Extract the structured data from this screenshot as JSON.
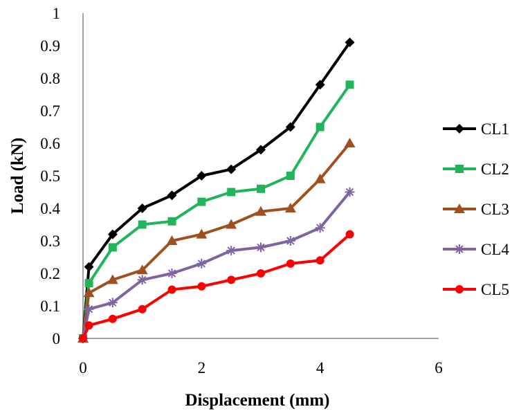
{
  "chart_data": {
    "type": "line",
    "title": "",
    "xlabel": "Displacement (mm)",
    "ylabel": "Load (kN)",
    "xlim": [
      0,
      6
    ],
    "ylim": [
      0,
      1
    ],
    "xticks": [
      0,
      2,
      4,
      6
    ],
    "yticks": [
      0,
      0.1,
      0.2,
      0.3,
      0.4,
      0.5,
      0.6,
      0.7,
      0.8,
      0.9,
      1
    ],
    "x": [
      0,
      0.1,
      0.5,
      1,
      1.5,
      2,
      2.5,
      3,
      3.5,
      4,
      4.5
    ],
    "grid": false,
    "legend_position": "right",
    "series": [
      {
        "name": "CL1",
        "color": "#000000",
        "marker": "diamond",
        "values": [
          0,
          0.22,
          0.32,
          0.4,
          0.44,
          0.5,
          0.52,
          0.58,
          0.65,
          0.78,
          0.91
        ]
      },
      {
        "name": "CL2",
        "color": "#22b45a",
        "marker": "square",
        "values": [
          0,
          0.17,
          0.28,
          0.35,
          0.36,
          0.42,
          0.45,
          0.46,
          0.5,
          0.65,
          0.78
        ]
      },
      {
        "name": "CL3",
        "color": "#a0501e",
        "marker": "triangle",
        "values": [
          0,
          0.14,
          0.18,
          0.21,
          0.3,
          0.32,
          0.35,
          0.39,
          0.4,
          0.49,
          0.6
        ]
      },
      {
        "name": "CL4",
        "color": "#8064a2",
        "marker": "asterisk",
        "values": [
          0,
          0.09,
          0.11,
          0.18,
          0.2,
          0.23,
          0.27,
          0.28,
          0.3,
          0.34,
          0.45
        ]
      },
      {
        "name": "CL5",
        "color": "#ff0000",
        "marker": "circle",
        "values": [
          0,
          0.04,
          0.06,
          0.09,
          0.15,
          0.16,
          0.18,
          0.2,
          0.23,
          0.24,
          0.32
        ]
      }
    ]
  }
}
